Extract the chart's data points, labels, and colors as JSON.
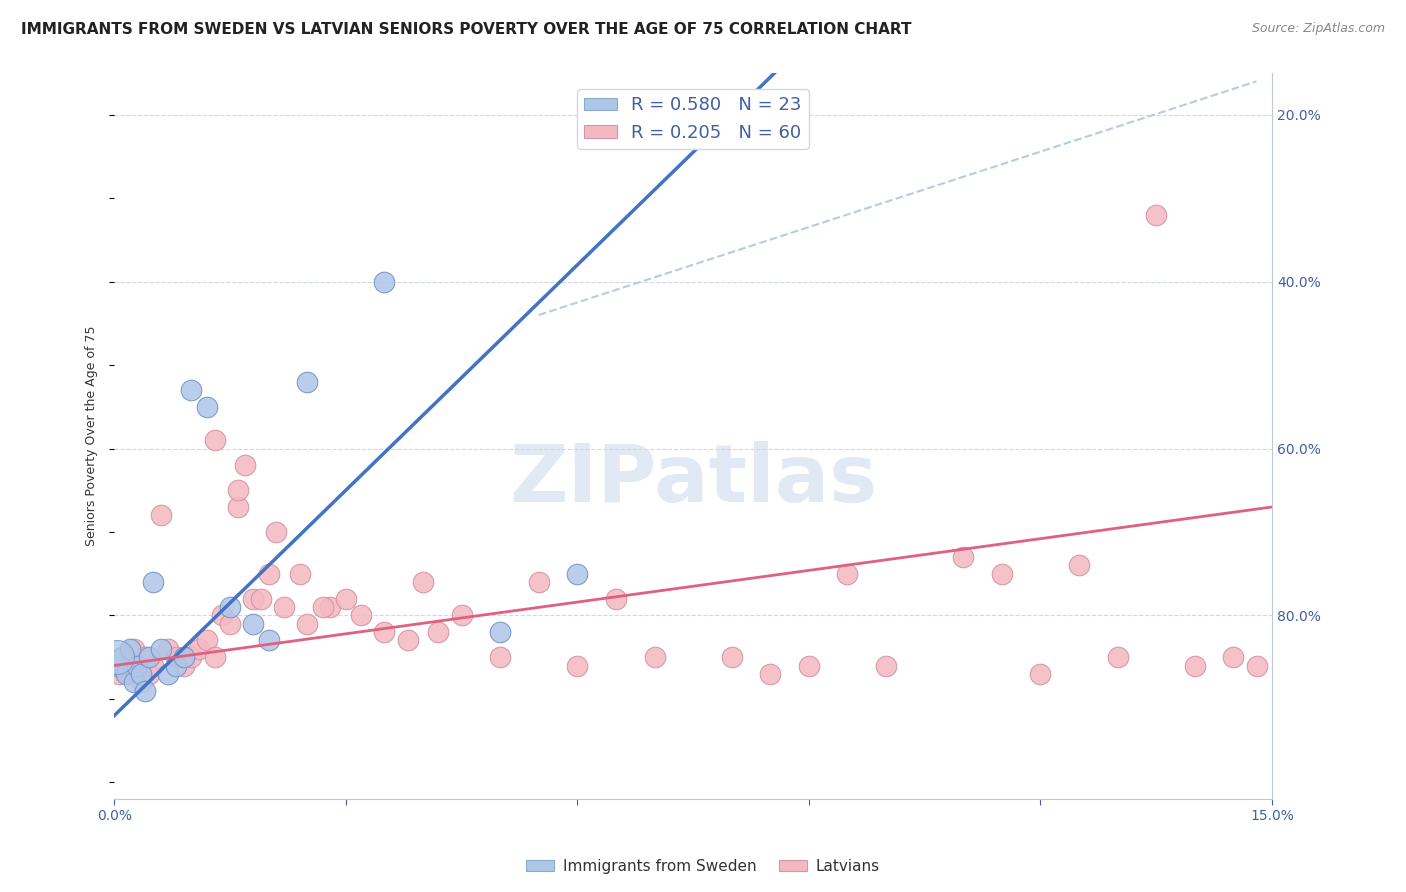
{
  "title": "IMMIGRANTS FROM SWEDEN VS LATVIAN SENIORS POVERTY OVER THE AGE OF 75 CORRELATION CHART",
  "source": "Source: ZipAtlas.com",
  "ylabel": "Seniors Poverty Over the Age of 75",
  "legend_entries": [
    {
      "label": "R = 0.580   N = 23",
      "color": "#aec6e8"
    },
    {
      "label": "R = 0.205   N = 60",
      "color": "#f4b8c1"
    }
  ],
  "legend_bottom": [
    "Immigrants from Sweden",
    "Latvians"
  ],
  "watermark": "ZIPatlas",
  "sweden_x": [
    0.0005,
    0.001,
    0.0015,
    0.002,
    0.0025,
    0.003,
    0.0035,
    0.004,
    0.0045,
    0.005,
    0.006,
    0.007,
    0.008,
    0.009,
    0.01,
    0.012,
    0.015,
    0.018,
    0.02,
    0.025,
    0.035,
    0.05,
    0.06
  ],
  "sweden_y": [
    0.14,
    0.15,
    0.13,
    0.16,
    0.12,
    0.14,
    0.13,
    0.11,
    0.15,
    0.24,
    0.16,
    0.13,
    0.14,
    0.15,
    0.47,
    0.45,
    0.21,
    0.19,
    0.17,
    0.48,
    0.6,
    0.18,
    0.25
  ],
  "latvian_x": [
    0.0003,
    0.0006,
    0.001,
    0.0015,
    0.002,
    0.0025,
    0.003,
    0.0035,
    0.004,
    0.0045,
    0.005,
    0.006,
    0.007,
    0.008,
    0.009,
    0.01,
    0.011,
    0.012,
    0.013,
    0.014,
    0.015,
    0.016,
    0.018,
    0.02,
    0.022,
    0.025,
    0.028,
    0.03,
    0.032,
    0.035,
    0.038,
    0.04,
    0.042,
    0.045,
    0.05,
    0.055,
    0.06,
    0.065,
    0.07,
    0.08,
    0.085,
    0.09,
    0.095,
    0.1,
    0.11,
    0.115,
    0.12,
    0.125,
    0.13,
    0.135,
    0.14,
    0.145,
    0.148,
    0.013,
    0.016,
    0.017,
    0.019,
    0.021,
    0.024,
    0.027
  ],
  "latvian_y": [
    0.14,
    0.13,
    0.15,
    0.14,
    0.13,
    0.16,
    0.14,
    0.12,
    0.15,
    0.13,
    0.14,
    0.32,
    0.16,
    0.15,
    0.14,
    0.15,
    0.16,
    0.17,
    0.15,
    0.2,
    0.19,
    0.33,
    0.22,
    0.25,
    0.21,
    0.19,
    0.21,
    0.22,
    0.2,
    0.18,
    0.17,
    0.24,
    0.18,
    0.2,
    0.15,
    0.24,
    0.14,
    0.22,
    0.15,
    0.15,
    0.13,
    0.14,
    0.25,
    0.14,
    0.27,
    0.25,
    0.13,
    0.26,
    0.15,
    0.68,
    0.14,
    0.15,
    0.14,
    0.41,
    0.35,
    0.38,
    0.22,
    0.3,
    0.25,
    0.21
  ],
  "xlim": [
    0.0,
    0.15
  ],
  "ylim": [
    0.0,
    0.85
  ],
  "sweden_color": "#aec6e8",
  "latvian_color": "#f4b8c1",
  "sweden_line_color": "#4472C4",
  "latvian_line_color": "#E06080",
  "grid_color": "#d0d8e4",
  "title_fontsize": 11,
  "axis_label_fontsize": 9,
  "tick_fontsize": 10,
  "grid_vals": [
    0.2,
    0.4,
    0.6,
    0.8
  ]
}
